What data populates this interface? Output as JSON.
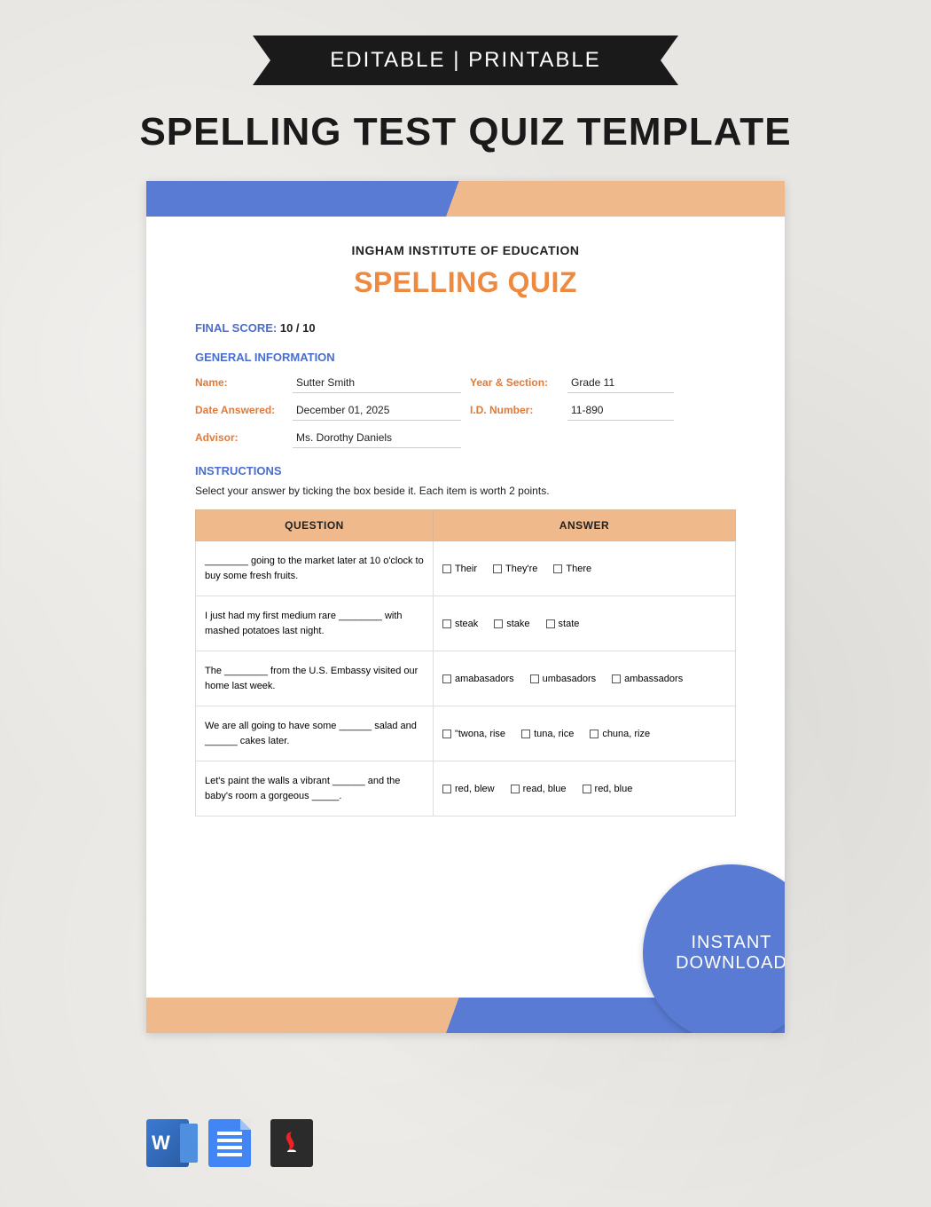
{
  "ribbon_text": "EDITABLE | PRINTABLE",
  "main_title": "SPELLING TEST QUIZ TEMPLATE",
  "badge_line1": "INSTANT",
  "badge_line2": "DOWNLOAD",
  "colors": {
    "accent_blue": "#5a7bd4",
    "accent_peach": "#f0b98c",
    "title_orange": "#ed8a3f",
    "label_orange": "#e07a3a",
    "ribbon_bg": "#1a1a1a",
    "page_bg": "#e8e6e2"
  },
  "doc": {
    "institution": "INGHAM INSTITUTE OF EDUCATION",
    "quiz_title": "SPELLING QUIZ",
    "score_label": "FINAL SCORE:",
    "score_value": "10 / 10",
    "section_general": "GENERAL INFORMATION",
    "section_instructions": "INSTRUCTIONS",
    "instructions_text": "Select your answer by ticking the box beside it. Each item is worth 2 points.",
    "info": {
      "name_k": "Name:",
      "name_v": "Sutter Smith",
      "year_k": "Year & Section:",
      "year_v": "Grade 11",
      "date_k": "Date Answered:",
      "date_v": "December 01, 2025",
      "id_k": "I.D. Number:",
      "id_v": "11-890",
      "adv_k": "Advisor:",
      "adv_v": "Ms. Dorothy Daniels"
    },
    "table": {
      "head_q": "QUESTION",
      "head_a": "ANSWER",
      "rows": [
        {
          "q": "________ going to the market later at 10 o'clock to buy some fresh fruits.",
          "opts": [
            "Their",
            "They're",
            "There"
          ]
        },
        {
          "q": "I just had my first medium rare ________ with mashed potatoes last night.",
          "opts": [
            "steak",
            "stake",
            "state"
          ]
        },
        {
          "q": "The ________ from the U.S. Embassy visited our home last week.",
          "opts": [
            "amabasadors",
            "umbasadors",
            "ambassadors"
          ]
        },
        {
          "q": "We are all going to have some ______ salad and ______ cakes later.",
          "opts": [
            "\"twona, rise",
            "tuna, rice",
            "chuna, rize"
          ]
        },
        {
          "q": "Let's paint the walls a vibrant ______ and the baby's room a gorgeous _____.",
          "opts": [
            "red, blew",
            "read, blue",
            "red, blue"
          ]
        }
      ]
    }
  },
  "file_icons": [
    "word",
    "gdoc",
    "pdf"
  ]
}
